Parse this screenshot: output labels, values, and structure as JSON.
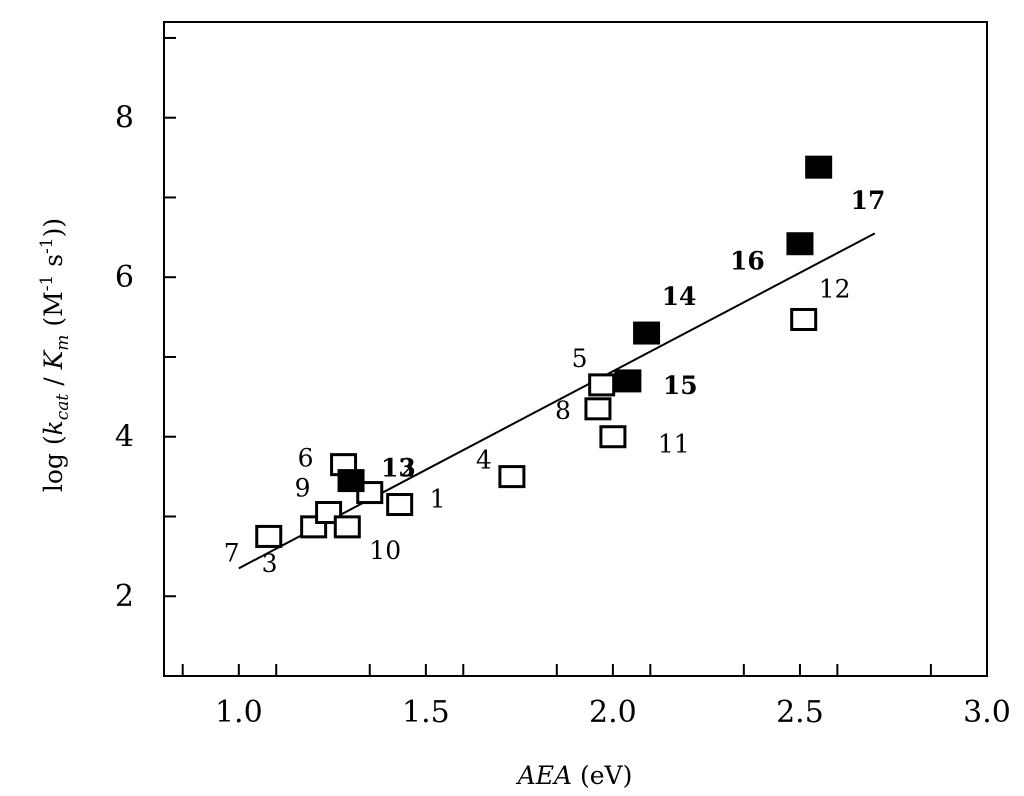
{
  "chart_data": {
    "type": "scatter",
    "title": "",
    "xlabel": "AEA (eV)",
    "ylabel": "log (k_cat / K_m (M^-1 s^-1))",
    "xlim": [
      0.8,
      3.0
    ],
    "ylim": [
      1.0,
      9.2
    ],
    "x_ticks": [
      1.0,
      1.5,
      2.0,
      2.5,
      3.0
    ],
    "x_tick_labels": [
      "1.0",
      "1.5",
      "2.0",
      "2.5",
      "3.0"
    ],
    "y_ticks": [
      2,
      4,
      6,
      8
    ],
    "y_tick_labels": [
      "2",
      "4",
      "6",
      "8"
    ],
    "grid": false,
    "series": [
      {
        "marker": "open-square",
        "points": [
          {
            "label": "1",
            "x": 1.43,
            "y": 3.15
          },
          {
            "label": "2",
            "x": 1.35,
            "y": 3.3
          },
          {
            "label": "3",
            "x": 1.2,
            "y": 2.87
          },
          {
            "label": "4",
            "x": 1.73,
            "y": 3.5
          },
          {
            "label": "5",
            "x": 1.97,
            "y": 4.65
          },
          {
            "label": "6",
            "x": 1.28,
            "y": 3.65
          },
          {
            "label": "7",
            "x": 1.08,
            "y": 2.75
          },
          {
            "label": "8",
            "x": 1.96,
            "y": 4.35
          },
          {
            "label": "9",
            "x": 1.24,
            "y": 3.05
          },
          {
            "label": "10",
            "x": 1.29,
            "y": 2.87
          },
          {
            "label": "11",
            "x": 2.0,
            "y": 4.0
          },
          {
            "label": "12",
            "x": 2.51,
            "y": 5.47
          }
        ]
      },
      {
        "marker": "filled-square",
        "points": [
          {
            "label": "13",
            "x": 1.3,
            "y": 3.45
          },
          {
            "label": "14",
            "x": 2.09,
            "y": 5.3
          },
          {
            "label": "15",
            "x": 2.04,
            "y": 4.7
          },
          {
            "label": "16",
            "x": 2.5,
            "y": 6.42
          },
          {
            "label": "17",
            "x": 2.55,
            "y": 7.38
          }
        ]
      }
    ],
    "fit_line": {
      "x": [
        1.0,
        2.7
      ],
      "y": [
        2.35,
        6.55
      ]
    }
  }
}
